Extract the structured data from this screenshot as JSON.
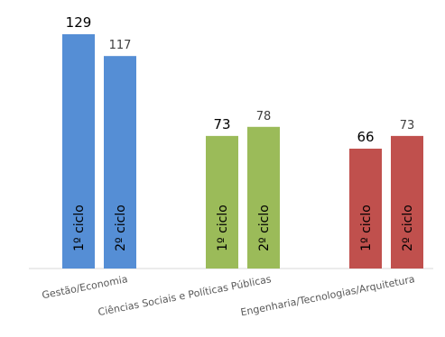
{
  "chart_data": {
    "type": "bar",
    "title": "",
    "xlabel": "",
    "ylabel": "",
    "ylim": [
      0,
      140
    ],
    "grid": false,
    "legend": "none",
    "categories": [
      "Gestão/Economia",
      "Ciências Sociais e Políticas Públicas",
      "Engenharia/Tecnologias/Arquitetura"
    ],
    "category_colors": [
      "#558ed5",
      "#9bbb59",
      "#c0504d"
    ],
    "bar_labels": [
      "1º ciclo",
      "2º ciclo"
    ],
    "series": [
      {
        "values": [
          129,
          73,
          66
        ]
      },
      {
        "values": [
          117,
          78,
          73
        ]
      }
    ]
  }
}
